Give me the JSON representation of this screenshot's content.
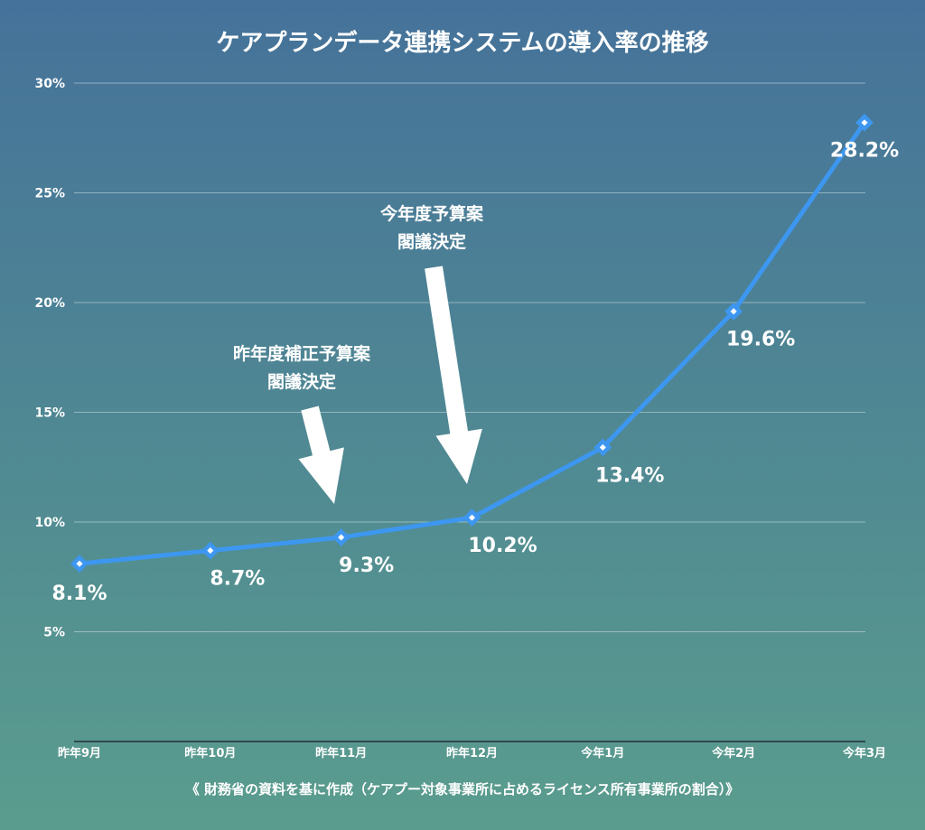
{
  "chart_data": {
    "type": "line",
    "title": "ケアプランデータ連携システムの導入率の推移",
    "categories": [
      "昨年9月",
      "昨年10月",
      "昨年11月",
      "昨年12月",
      "今年1月",
      "今年2月",
      "今年3月"
    ],
    "series": [
      {
        "values": [
          8.1,
          8.7,
          9.3,
          10.2,
          13.4,
          19.6,
          28.2
        ]
      }
    ],
    "data_labels": [
      "8.1%",
      "8.7%",
      "9.3%",
      "10.2%",
      "13.4%",
      "19.6%",
      "28.2%"
    ],
    "y_ticks": [
      {
        "value": 5,
        "label": "5%"
      },
      {
        "value": 10,
        "label": "10%"
      },
      {
        "value": 15,
        "label": "15%"
      },
      {
        "value": 20,
        "label": "20%"
      },
      {
        "value": 25,
        "label": "25%"
      },
      {
        "value": 30,
        "label": "30%"
      }
    ],
    "ylim": [
      0,
      30
    ],
    "grid": true,
    "line_color": "#3d97f0",
    "annotations": [
      {
        "lines": [
          "昨年度補正予算案",
          "閣議決定"
        ],
        "points_to": "昨年11月"
      },
      {
        "lines": [
          "今年度予算案",
          "閣議決定"
        ],
        "points_to": "昨年12月"
      }
    ],
    "source_note": "《 財務省の資料を基に作成（ケアプー対象事業所に占めるライセンス所有事業所の割合）》"
  }
}
